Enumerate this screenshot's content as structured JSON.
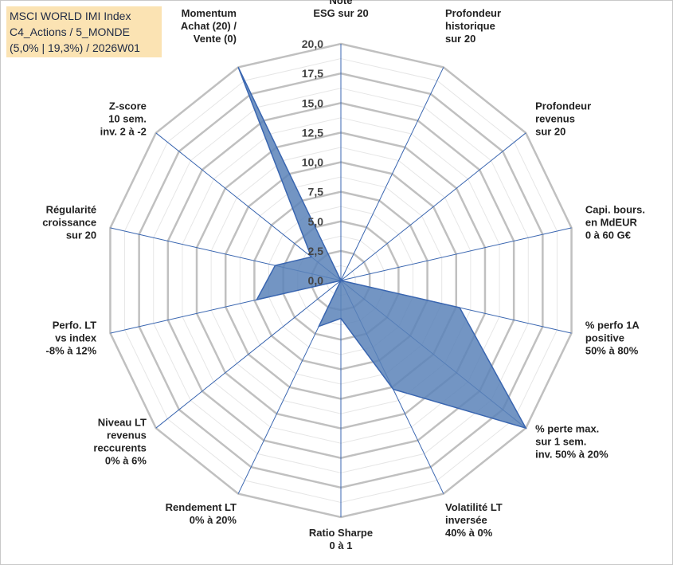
{
  "title": {
    "line1": "MSCI WORLD IMI Index",
    "line2": "C4_Actions / 5_MONDE",
    "line3": "(5,0% | 19,3%) / 2026W01"
  },
  "colors": {
    "fill": "#5b83b8",
    "stroke": "#3a66b0",
    "grid_major": "#c0c0c0",
    "grid_minor": "#e6e6e6",
    "spoke": "#3a66b0"
  },
  "chart_data": {
    "type": "radar",
    "rmin": 0,
    "rmax": 20,
    "ticks": [
      "0,0",
      "2,5",
      "5,0",
      "7,5",
      "10,0",
      "12,5",
      "15,0",
      "17,5",
      "20,0"
    ],
    "tick_values": [
      0,
      2.5,
      5,
      7.5,
      10,
      12.5,
      15,
      17.5,
      20
    ],
    "categories": [
      [
        "Note",
        "ESG sur 20"
      ],
      [
        "Profondeur",
        "historique",
        "sur 20"
      ],
      [
        "Profondeur",
        "revenus",
        "sur 20"
      ],
      [
        "Capi. bours.",
        "en MdEUR",
        "0 à 60 G€"
      ],
      [
        "% perfo 1A",
        "positive",
        "50% à 80%"
      ],
      [
        "% perte max.",
        "sur 1 sem.",
        "inv. 50% à 20%"
      ],
      [
        "Volatilité LT",
        "inversée",
        "40% à 0%"
      ],
      [
        "Ratio Sharpe",
        "0 à 1"
      ],
      [
        "Rendement LT",
        "0% à 20%"
      ],
      [
        "Niveau LT",
        "revenus",
        "reccurents",
        "0% à 6%"
      ],
      [
        "Perfo. LT",
        "vs index",
        "-8% à 12%"
      ],
      [
        "Régularité",
        "croissance",
        "sur 20"
      ],
      [
        "Z-score",
        "10 sem.",
        "inv. 2 à -2"
      ],
      [
        "Momentum",
        "Achat (20) /",
        "Vente (0)"
      ]
    ],
    "values": [
      0,
      0,
      0,
      0,
      10.3,
      20,
      10.2,
      3.2,
      4.3,
      0,
      7.3,
      5.7,
      3.2,
      20
    ]
  }
}
